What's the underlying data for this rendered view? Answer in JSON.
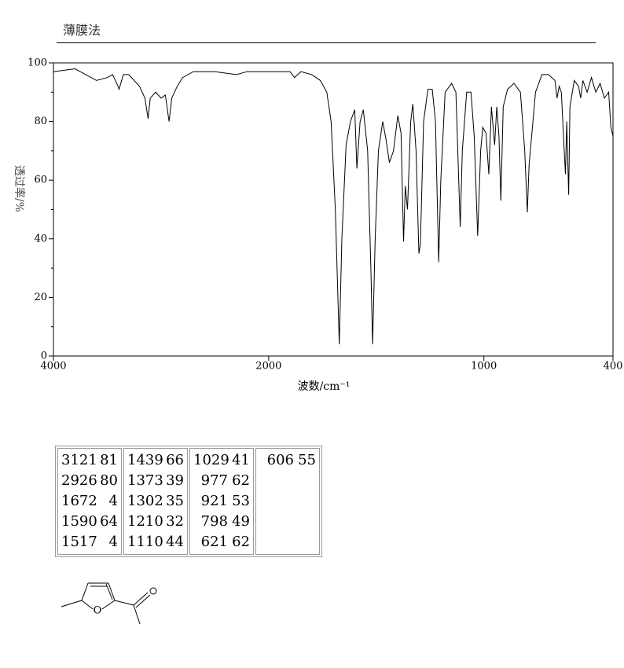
{
  "header": {
    "title": "薄膜法"
  },
  "chart_data": {
    "type": "line",
    "x_label": "波数/cm⁻¹",
    "y_label": "透过率/%",
    "xlim": [
      4000,
      400
    ],
    "xticks": [
      4000,
      2000,
      1000,
      400
    ],
    "x_scale": {
      "break": 2000,
      "factor": 2
    },
    "ylim": [
      0,
      100
    ],
    "yticks": [
      0,
      20,
      40,
      60,
      80,
      100
    ],
    "yticks_minor": [
      10,
      30,
      50,
      70,
      90
    ],
    "color": "#000000",
    "x": [
      4000,
      3800,
      3700,
      3600,
      3500,
      3450,
      3400,
      3390,
      3350,
      3300,
      3200,
      3150,
      3121,
      3100,
      3050,
      3000,
      2960,
      2926,
      2900,
      2850,
      2800,
      2700,
      2500,
      2300,
      2200,
      2100,
      2000,
      1900,
      1880,
      1850,
      1800,
      1760,
      1730,
      1710,
      1690,
      1672,
      1660,
      1640,
      1620,
      1600,
      1590,
      1575,
      1560,
      1540,
      1525,
      1517,
      1505,
      1490,
      1470,
      1455,
      1439,
      1420,
      1400,
      1385,
      1373,
      1365,
      1355,
      1340,
      1330,
      1315,
      1302,
      1295,
      1280,
      1260,
      1240,
      1225,
      1210,
      1200,
      1180,
      1150,
      1130,
      1110,
      1100,
      1080,
      1060,
      1045,
      1029,
      1015,
      1005,
      990,
      977,
      965,
      950,
      940,
      930,
      921,
      910,
      890,
      860,
      830,
      810,
      798,
      790,
      760,
      730,
      700,
      670,
      660,
      650,
      640,
      630,
      621,
      615,
      606,
      600,
      580,
      560,
      550,
      540,
      520,
      500,
      480,
      460,
      440,
      420,
      410,
      400
    ],
    "values": [
      97,
      98,
      96,
      94,
      95,
      96,
      92,
      91,
      96,
      96,
      92,
      88,
      81,
      88,
      90,
      88,
      89,
      80,
      88,
      92,
      95,
      97,
      97,
      96,
      97,
      97,
      97,
      97,
      95,
      97,
      96,
      94,
      90,
      80,
      50,
      4,
      40,
      72,
      80,
      84,
      64,
      80,
      84,
      70,
      30,
      4,
      40,
      70,
      80,
      74,
      66,
      70,
      82,
      76,
      39,
      58,
      50,
      80,
      86,
      70,
      35,
      38,
      80,
      91,
      91,
      80,
      32,
      60,
      90,
      93,
      90,
      44,
      70,
      90,
      90,
      75,
      41,
      70,
      78,
      76,
      62,
      85,
      72,
      85,
      75,
      53,
      85,
      91,
      93,
      90,
      70,
      49,
      65,
      90,
      96,
      96,
      94,
      88,
      92,
      90,
      75,
      62,
      80,
      55,
      85,
      94,
      92,
      88,
      94,
      90,
      95,
      90,
      93,
      88,
      90,
      78,
      75
    ]
  },
  "table": {
    "columns": [
      [
        [
          3121,
          81
        ],
        [
          2926,
          80
        ],
        [
          1672,
          4
        ],
        [
          1590,
          64
        ],
        [
          1517,
          4
        ]
      ],
      [
        [
          1439,
          66
        ],
        [
          1373,
          39
        ],
        [
          1302,
          35
        ],
        [
          1210,
          32
        ],
        [
          1110,
          44
        ]
      ],
      [
        [
          1029,
          41
        ],
        [
          977,
          62
        ],
        [
          921,
          53
        ],
        [
          798,
          49
        ],
        [
          621,
          62
        ]
      ],
      [
        [
          606,
          55
        ]
      ]
    ]
  },
  "molecule": {
    "atom": "O"
  }
}
